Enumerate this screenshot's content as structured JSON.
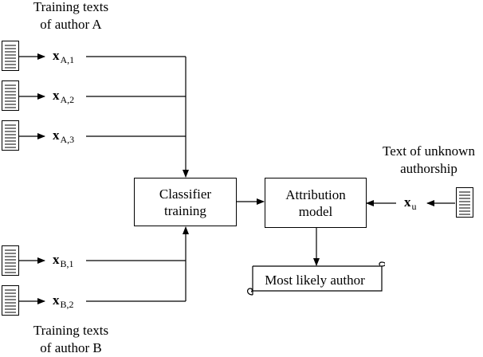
{
  "captions": {
    "author_a": [
      "Training texts",
      "of author A"
    ],
    "author_b": [
      "Training texts",
      "of author B"
    ],
    "unknown": [
      "Text of unknown",
      "authorship"
    ]
  },
  "features": {
    "a1": {
      "vec": "x",
      "sub": "A,1"
    },
    "a2": {
      "vec": "x",
      "sub": "A,2"
    },
    "a3": {
      "vec": "x",
      "sub": "A,3"
    },
    "b1": {
      "vec": "x",
      "sub": "B,1"
    },
    "b2": {
      "vec": "x",
      "sub": "B,2"
    },
    "u": {
      "vec": "x",
      "sub": "u"
    }
  },
  "nodes": {
    "classifier": [
      "Classifier",
      "training"
    ],
    "attribution": [
      "Attribution",
      "model"
    ],
    "result": "Most likely author"
  },
  "edges": [
    {
      "from": "doc-a1",
      "to": "feature-a1"
    },
    {
      "from": "doc-a2",
      "to": "feature-a2"
    },
    {
      "from": "doc-a3",
      "to": "feature-a3"
    },
    {
      "from": "doc-b1",
      "to": "feature-b1"
    },
    {
      "from": "doc-b2",
      "to": "feature-b2"
    },
    {
      "from": "feature-a1",
      "to": "classifier-training"
    },
    {
      "from": "feature-a2",
      "to": "classifier-training"
    },
    {
      "from": "feature-a3",
      "to": "classifier-training"
    },
    {
      "from": "feature-b1",
      "to": "classifier-training"
    },
    {
      "from": "feature-b2",
      "to": "classifier-training"
    },
    {
      "from": "classifier-training",
      "to": "attribution-model"
    },
    {
      "from": "doc-unknown",
      "to": "feature-u"
    },
    {
      "from": "feature-u",
      "to": "attribution-model"
    },
    {
      "from": "attribution-model",
      "to": "most-likely-author"
    }
  ]
}
